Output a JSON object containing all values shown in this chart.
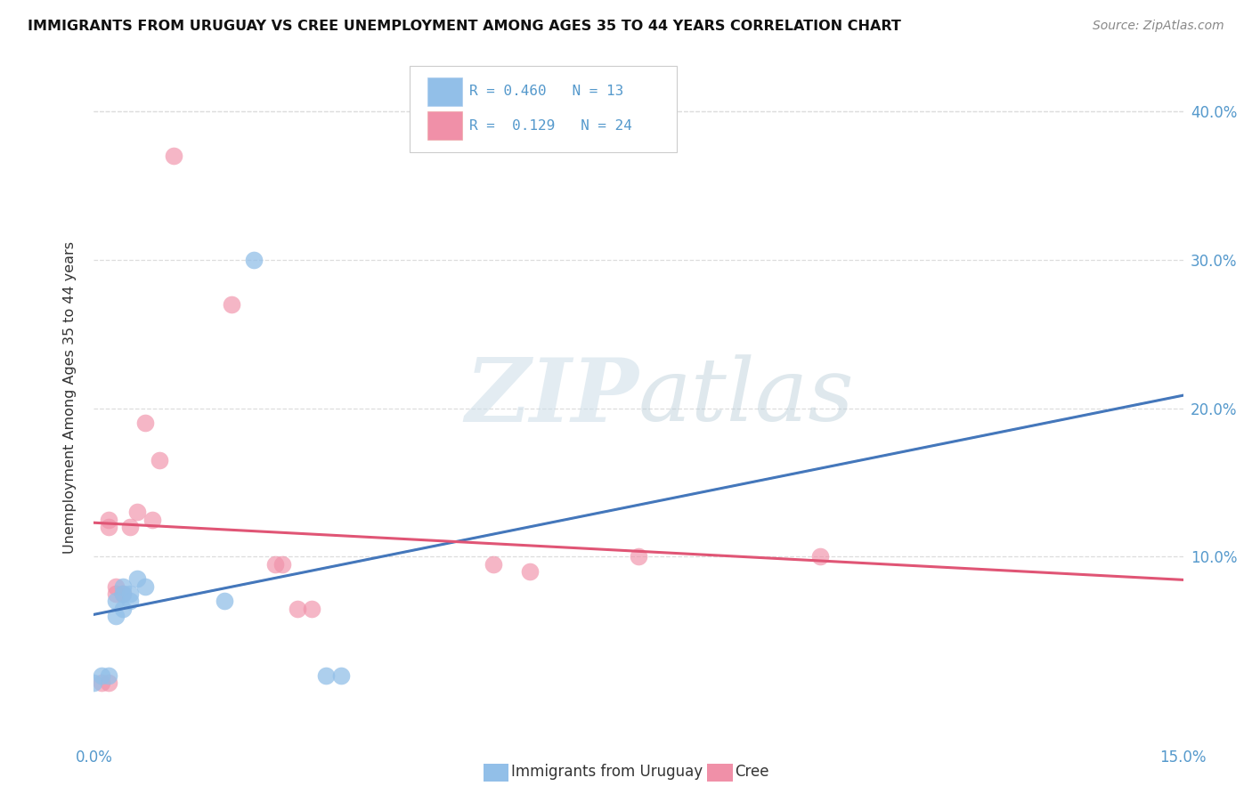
{
  "title": "IMMIGRANTS FROM URUGUAY VS CREE UNEMPLOYMENT AMONG AGES 35 TO 44 YEARS CORRELATION CHART",
  "source": "Source: ZipAtlas.com",
  "ylabel": "Unemployment Among Ages 35 to 44 years",
  "xlim": [
    0.0,
    0.15
  ],
  "ylim": [
    -0.025,
    0.44
  ],
  "uruguay_points": [
    [
      0.0,
      0.015
    ],
    [
      0.001,
      0.02
    ],
    [
      0.002,
      0.02
    ],
    [
      0.003,
      0.06
    ],
    [
      0.003,
      0.07
    ],
    [
      0.004,
      0.065
    ],
    [
      0.004,
      0.075
    ],
    [
      0.004,
      0.08
    ],
    [
      0.005,
      0.07
    ],
    [
      0.005,
      0.075
    ],
    [
      0.006,
      0.085
    ],
    [
      0.007,
      0.08
    ],
    [
      0.018,
      0.07
    ],
    [
      0.022,
      0.3
    ],
    [
      0.032,
      0.02
    ],
    [
      0.034,
      0.02
    ]
  ],
  "cree_points": [
    [
      0.001,
      0.015
    ],
    [
      0.002,
      0.015
    ],
    [
      0.002,
      0.12
    ],
    [
      0.002,
      0.125
    ],
    [
      0.003,
      0.075
    ],
    [
      0.003,
      0.08
    ],
    [
      0.004,
      0.075
    ],
    [
      0.005,
      0.12
    ],
    [
      0.006,
      0.13
    ],
    [
      0.007,
      0.19
    ],
    [
      0.008,
      0.125
    ],
    [
      0.009,
      0.165
    ],
    [
      0.011,
      0.37
    ],
    [
      0.019,
      0.27
    ],
    [
      0.025,
      0.095
    ],
    [
      0.026,
      0.095
    ],
    [
      0.028,
      0.065
    ],
    [
      0.03,
      0.065
    ],
    [
      0.06,
      0.09
    ],
    [
      0.075,
      0.1
    ],
    [
      0.1,
      0.1
    ],
    [
      0.055,
      0.095
    ]
  ],
  "uruguay_color": "#92bfe8",
  "cree_color": "#f090a8",
  "uruguay_solid_color": "#4477bb",
  "uruguay_dashed_color": "#99bbdd",
  "cree_trend_color": "#e05575",
  "background_color": "#ffffff",
  "grid_color": "#dddddd",
  "tick_color": "#5599cc",
  "ylabel_color": "#333333",
  "title_color": "#111111",
  "source_color": "#888888"
}
